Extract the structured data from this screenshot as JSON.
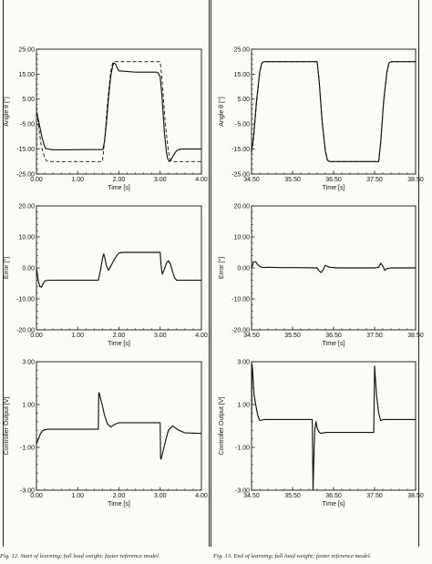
{
  "figures": [
    {
      "caption": "Fig. 12. Start of learning; full load weight; faster reference model.",
      "panels": [
        {
          "chart_data": {
            "type": "line",
            "xlabel": "Time [s]",
            "ylabel": "Angle θ [°]",
            "xlim": [
              0,
              4
            ],
            "ylim": [
              -25,
              25
            ],
            "xticks": [
              "0.00",
              "1.00",
              "2.00",
              "3.00",
              "4.00"
            ],
            "yticks": [
              "-25.00",
              "-15.00",
              "-5.00",
              "5.00",
              "15.00",
              "25.00"
            ],
            "series": [
              {
                "style": "solid",
                "x": [
                  0,
                  0.03,
                  0.08,
                  0.13,
                  0.18,
                  0.22,
                  0.4,
                  0.8,
                  1.2,
                  1.5,
                  1.61,
                  1.65,
                  1.7,
                  1.75,
                  1.8,
                  1.85,
                  1.88,
                  1.92,
                  1.96,
                  2.0,
                  2.4,
                  2.8,
                  2.9,
                  2.95,
                  3.0,
                  3.05,
                  3.1,
                  3.15,
                  3.18,
                  3.22,
                  3.26,
                  3.32,
                  3.4,
                  3.5,
                  3.7,
                  4.0
                ],
                "y": [
                  0,
                  -2,
                  -6,
                  -10,
                  -13,
                  -14.8,
                  -15.3,
                  -15.3,
                  -15.2,
                  -15.2,
                  -15.2,
                  -12,
                  -4,
                  6,
                  14,
                  18.5,
                  19.5,
                  19,
                  17.5,
                  16.3,
                  15.8,
                  15.8,
                  15.8,
                  15.5,
                  14,
                  5,
                  -8,
                  -16,
                  -18.8,
                  -20,
                  -19.5,
                  -17.5,
                  -15.6,
                  -15,
                  -15,
                  -15
                ]
              },
              {
                "style": "dashed",
                "x": [
                  0,
                  0.05,
                  0.12,
                  0.2,
                  0.25,
                  0.3,
                  1.6,
                  1.65,
                  1.72,
                  1.8,
                  1.85,
                  1.9,
                  3.0,
                  3.05,
                  3.12,
                  3.2,
                  3.25,
                  3.3,
                  4.0
                ],
                "y": [
                  2,
                  -6,
                  -14,
                  -18.5,
                  -19.8,
                  -20,
                  -20,
                  -12,
                  3,
                  16,
                  19.5,
                  20,
                  20,
                  12,
                  -4,
                  -16,
                  -19.5,
                  -20,
                  -20
                ]
              }
            ]
          }
        },
        {
          "chart_data": {
            "type": "line",
            "xlabel": "Time [s]",
            "ylabel": "Error [°]",
            "xlim": [
              0,
              4
            ],
            "ylim": [
              -20,
              20
            ],
            "xticks": [
              "0.00",
              "1.00",
              "2.00",
              "3.00",
              "4.00"
            ],
            "yticks": [
              "-20.00",
              "-10.00",
              "0.00",
              "10.00",
              "20.00"
            ],
            "series": [
              {
                "style": "solid",
                "x": [
                  0,
                  0.02,
                  0.05,
                  0.08,
                  0.12,
                  0.16,
                  0.2,
                  0.3,
                  0.5,
                  1.0,
                  1.5,
                  1.55,
                  1.6,
                  1.63,
                  1.66,
                  1.7,
                  1.75,
                  1.8,
                  1.88,
                  1.95,
                  2.0,
                  2.1,
                  2.5,
                  2.9,
                  3.0,
                  3.02,
                  3.05,
                  3.1,
                  3.15,
                  3.2,
                  3.25,
                  3.3,
                  3.35,
                  3.4,
                  3.5,
                  3.7,
                  4.0
                ],
                "y": [
                  0,
                  -2,
                  -4.5,
                  -6,
                  -6.2,
                  -5.2,
                  -4.2,
                  -4,
                  -4,
                  -4,
                  -4,
                  -1,
                  3,
                  4.5,
                  3.2,
                  0.5,
                  -0.8,
                  0.5,
                  2.5,
                  4,
                  4.8,
                  5,
                  5,
                  5,
                  5,
                  1,
                  -2,
                  -0.5,
                  1.5,
                  2.3,
                  1.2,
                  -1.2,
                  -3.2,
                  -4,
                  -4,
                  -4,
                  -4
                ]
              }
            ]
          }
        },
        {
          "chart_data": {
            "type": "line",
            "xlabel": "Time [s]",
            "ylabel": "Controller Output [V]",
            "xlim": [
              0,
              4
            ],
            "ylim": [
              -3,
              3
            ],
            "xticks": [
              "0.00",
              "1.00",
              "2.00",
              "3.00",
              "4.00"
            ],
            "yticks": [
              "-3.00",
              "-1.00",
              "1.00",
              "3.00"
            ],
            "series": [
              {
                "style": "solid",
                "x": [
                  0,
                  0.05,
                  0.1,
                  0.15,
                  0.2,
                  0.3,
                  0.6,
                  1.0,
                  1.3,
                  1.5,
                  1.51,
                  1.52,
                  1.58,
                  1.65,
                  1.72,
                  1.8,
                  1.9,
                  2.0,
                  2.5,
                  3.0,
                  3.01,
                  3.02,
                  3.08,
                  3.15,
                  3.2,
                  3.3,
                  3.45,
                  3.6,
                  4.0
                ],
                "y": [
                  -0.85,
                  -0.6,
                  -0.35,
                  -0.22,
                  -0.18,
                  -0.15,
                  -0.15,
                  -0.15,
                  -0.15,
                  -0.15,
                  1.5,
                  1.55,
                  1.1,
                  0.5,
                  0.1,
                  -0.05,
                  0.08,
                  0.15,
                  0.15,
                  0.15,
                  -1.5,
                  -1.55,
                  -1.1,
                  -0.55,
                  -0.2,
                  0.0,
                  -0.2,
                  -0.32,
                  -0.35
                ]
              }
            ]
          }
        }
      ]
    },
    {
      "caption": "Fig. 13. End of learning; full load weight; faster reference model.",
      "panels": [
        {
          "chart_data": {
            "type": "line",
            "xlabel": "Time [s]",
            "ylabel": "Angle θ [°]",
            "xlim": [
              34.5,
              38.5
            ],
            "ylim": [
              -25,
              25
            ],
            "xticks": [
              "34.50",
              "35.50",
              "36.50",
              "37.50",
              "38.50"
            ],
            "yticks": [
              "-25.00",
              "-15.00",
              "-5.00",
              "5.00",
              "15.00",
              "25.00"
            ],
            "series": [
              {
                "style": "solid",
                "x": [
                  34.5,
                  34.55,
                  34.62,
                  34.7,
                  34.75,
                  34.8,
                  36.1,
                  36.15,
                  36.22,
                  36.3,
                  36.35,
                  36.4,
                  37.6,
                  37.65,
                  37.72,
                  37.8,
                  37.85,
                  37.9,
                  38.5
                ],
                "y": [
                  -16,
                  -10,
                  4,
                  16,
                  19.5,
                  20,
                  20,
                  12,
                  -4,
                  -16,
                  -19.5,
                  -20,
                  -20,
                  -12,
                  4,
                  16,
                  19.5,
                  20,
                  20
                ]
              },
              {
                "style": "dashed",
                "x": [
                  34.5,
                  34.55,
                  34.62,
                  34.7,
                  34.75,
                  34.8,
                  36.1,
                  36.15,
                  36.22,
                  36.3,
                  36.35,
                  36.4,
                  37.6,
                  37.65,
                  37.72,
                  37.8,
                  37.85,
                  37.9,
                  38.5
                ],
                "y": [
                  -16.5,
                  -11,
                  3,
                  15.5,
                  19.3,
                  20,
                  20,
                  12.5,
                  -3.5,
                  -15.5,
                  -19.3,
                  -20,
                  -20,
                  -12.5,
                  3.5,
                  15.5,
                  19.3,
                  20,
                  20
                ]
              }
            ]
          }
        },
        {
          "chart_data": {
            "type": "line",
            "xlabel": "Time [s]",
            "ylabel": "Error [°]",
            "xlim": [
              34.5,
              38.5
            ],
            "ylim": [
              -20,
              20
            ],
            "xticks": [
              "34.50",
              "35.50",
              "36.50",
              "37.50",
              "38.50"
            ],
            "yticks": [
              "-20.00",
              "-10.00",
              "0.00",
              "10.00",
              "20.00"
            ],
            "series": [
              {
                "style": "solid",
                "x": [
                  34.5,
                  34.55,
                  34.6,
                  34.65,
                  34.72,
                  34.8,
                  34.9,
                  35.2,
                  35.6,
                  36.1,
                  36.15,
                  36.2,
                  36.25,
                  36.3,
                  36.4,
                  36.6,
                  37.0,
                  37.5,
                  37.6,
                  37.65,
                  37.7,
                  37.75,
                  37.8,
                  37.9,
                  38.2,
                  38.5
                ],
                "y": [
                  0,
                  1.8,
                  2,
                  1,
                  0.3,
                  0.1,
                  0.2,
                  0.1,
                  0.1,
                  0,
                  -1,
                  -1.5,
                  -0.5,
                  0.8,
                  0.2,
                  0,
                  0,
                  0,
                  0.2,
                  1.5,
                  0.6,
                  -0.8,
                  -0.3,
                  0,
                  0,
                  0
                ]
              }
            ]
          }
        },
        {
          "chart_data": {
            "type": "line",
            "xlabel": "Time [s]",
            "ylabel": "Controller Output [V]",
            "xlim": [
              34.5,
              38.5
            ],
            "ylim": [
              -3,
              3
            ],
            "xticks": [
              "34.50",
              "35.50",
              "36.50",
              "37.50",
              "38.50"
            ],
            "yticks": [
              "-3.00",
              "-1.00",
              "1.00",
              "3.00"
            ],
            "series": [
              {
                "style": "solid",
                "x": [
                  34.5,
                  34.51,
                  34.53,
                  34.56,
                  34.6,
                  34.65,
                  34.7,
                  34.8,
                  35.3,
                  35.98,
                  36.0,
                  36.02,
                  36.04,
                  36.07,
                  36.1,
                  36.15,
                  36.2,
                  36.3,
                  36.8,
                  37.48,
                  37.5,
                  37.52,
                  37.55,
                  37.6,
                  37.65,
                  37.7,
                  37.8,
                  38.5
                ],
                "y": [
                  0.2,
                  2.9,
                  2.5,
                  1.5,
                  1.0,
                  0.5,
                  0.25,
                  0.3,
                  0.3,
                  0.3,
                  -3.0,
                  -1.5,
                  -0.2,
                  0.2,
                  -0.1,
                  -0.3,
                  -0.35,
                  -0.3,
                  -0.3,
                  -0.3,
                  2.8,
                  2.2,
                  1.4,
                  0.6,
                  0.25,
                  0.3,
                  0.3,
                  0.3
                ]
              }
            ]
          }
        }
      ]
    }
  ]
}
